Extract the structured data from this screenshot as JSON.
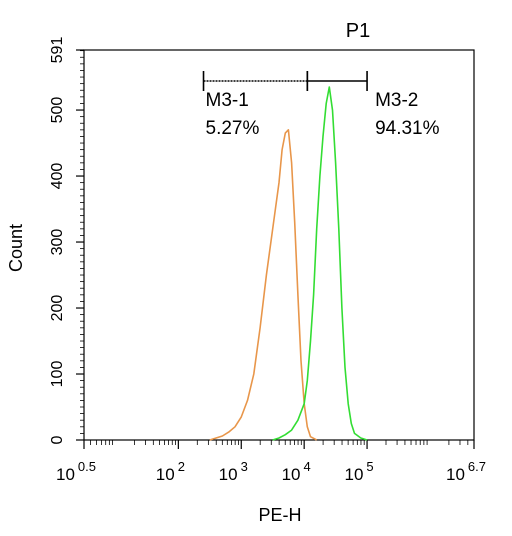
{
  "chart_data": {
    "type": "histogram",
    "title": "P1",
    "title_color": "#33cc33",
    "xlabel": "PE-H",
    "ylabel": "Count",
    "x_scale": "log10",
    "xlim": [
      0.5,
      6.7
    ],
    "ylim": [
      0,
      591
    ],
    "x_ticks": [
      {
        "exp": 0.5,
        "base": "10",
        "sup": "0.5"
      },
      {
        "exp": 2,
        "base": "10",
        "sup": "2"
      },
      {
        "exp": 3,
        "base": "10",
        "sup": "3"
      },
      {
        "exp": 4,
        "base": "10",
        "sup": "4"
      },
      {
        "exp": 5,
        "base": "10",
        "sup": "5"
      },
      {
        "exp": 6.7,
        "base": "10",
        "sup": "6.7"
      }
    ],
    "y_ticks": [
      0,
      100,
      200,
      300,
      400,
      500,
      591
    ],
    "gates": [
      {
        "name": "M3-1",
        "percent": "5.27%",
        "start_exp": 2.4,
        "end_exp": 4.05
      },
      {
        "name": "M3-2",
        "percent": "94.31%",
        "start_exp": 4.05,
        "end_exp": 5.0
      }
    ],
    "series": [
      {
        "color": "#e8964a",
        "log_x": [
          2.5,
          2.6,
          2.7,
          2.8,
          2.9,
          3.0,
          3.1,
          3.2,
          3.3,
          3.4,
          3.5,
          3.6,
          3.65,
          3.7,
          3.75,
          3.8,
          3.85,
          3.9,
          3.95,
          4.0,
          4.05,
          4.1,
          4.2
        ],
        "counts": [
          0,
          3,
          6,
          12,
          20,
          35,
          60,
          100,
          170,
          250,
          320,
          390,
          440,
          465,
          470,
          420,
          330,
          220,
          120,
          55,
          20,
          5,
          0
        ]
      },
      {
        "color": "#33dd33",
        "log_x": [
          3.5,
          3.6,
          3.7,
          3.8,
          3.9,
          4.0,
          4.05,
          4.1,
          4.15,
          4.2,
          4.25,
          4.3,
          4.35,
          4.4,
          4.45,
          4.5,
          4.55,
          4.6,
          4.65,
          4.7,
          4.75,
          4.8,
          4.9,
          5.0
        ],
        "counts": [
          0,
          3,
          8,
          15,
          30,
          55,
          90,
          150,
          220,
          320,
          400,
          460,
          510,
          535,
          500,
          420,
          320,
          200,
          110,
          55,
          25,
          10,
          3,
          0
        ]
      }
    ]
  }
}
